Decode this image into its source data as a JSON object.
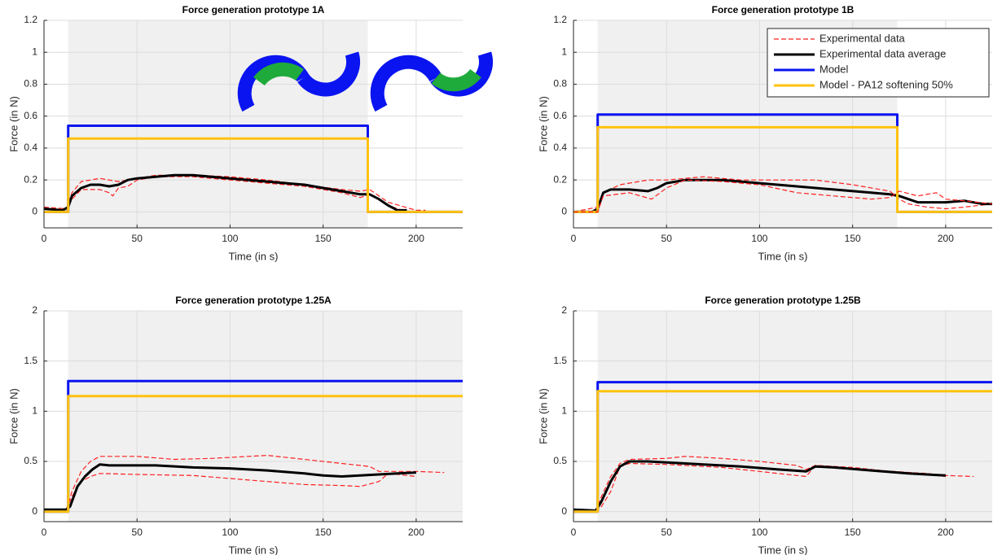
{
  "chart_data": [
    {
      "type": "line",
      "title": "Force generation prototype 1A",
      "xlabel": "Time (in s)",
      "ylabel": "Force (in N)",
      "xlim": [
        0,
        225
      ],
      "ylim": [
        -0.1,
        1.2
      ],
      "xticks": [
        0,
        50,
        100,
        150,
        200
      ],
      "yticks": [
        0,
        0.2,
        0.4,
        0.6,
        0.8,
        1,
        1.2
      ],
      "grid": true,
      "shade": [
        13,
        174
      ],
      "series": [
        {
          "color": "#ff2020",
          "style": "dashed",
          "x": [
            0,
            12,
            15,
            20,
            25,
            30,
            35,
            40,
            50,
            60,
            80,
            100,
            120,
            140,
            160,
            170,
            175,
            185,
            200,
            205
          ],
          "values": [
            0.03,
            0.02,
            0.12,
            0.19,
            0.2,
            0.21,
            0.2,
            0.19,
            0.21,
            0.23,
            0.23,
            0.22,
            0.2,
            0.17,
            0.14,
            0.13,
            0.14,
            0.06,
            0.01,
            0.01
          ]
        },
        {
          "color": "#ff2020",
          "style": "dashed",
          "x": [
            0,
            12,
            15,
            20,
            30,
            35,
            37,
            40,
            45,
            50,
            60,
            80,
            100,
            120,
            140,
            160,
            170,
            175,
            185,
            195
          ],
          "values": [
            0,
            0,
            0.08,
            0.14,
            0.14,
            0.12,
            0.1,
            0.15,
            0.16,
            0.2,
            0.22,
            0.22,
            0.2,
            0.18,
            0.16,
            0.12,
            0.09,
            0.11,
            0.04,
            0
          ]
        },
        {
          "color": "#000000",
          "style": "solid",
          "x": [
            0,
            10,
            13,
            15,
            20,
            25,
            30,
            35,
            40,
            45,
            50,
            60,
            70,
            80,
            90,
            100,
            110,
            120,
            130,
            140,
            150,
            160,
            170,
            175,
            180,
            185,
            190,
            195
          ],
          "values": [
            0.02,
            0.01,
            0.03,
            0.1,
            0.15,
            0.17,
            0.17,
            0.16,
            0.17,
            0.2,
            0.21,
            0.22,
            0.23,
            0.23,
            0.22,
            0.21,
            0.2,
            0.19,
            0.18,
            0.17,
            0.15,
            0.13,
            0.11,
            0.11,
            0.08,
            0.04,
            0.01,
            0.01
          ]
        },
        {
          "color": "#0a14f0",
          "style": "solid",
          "x": [
            0,
            13,
            13,
            174,
            174,
            225
          ],
          "values": [
            0,
            0,
            0.54,
            0.54,
            0,
            0
          ]
        },
        {
          "color": "#ffc20e",
          "style": "solid",
          "x": [
            0,
            13,
            13,
            174,
            174,
            225
          ],
          "values": [
            0,
            0,
            0.46,
            0.46,
            0,
            0
          ]
        }
      ]
    },
    {
      "type": "line",
      "title": "Force generation prototype 1B",
      "xlabel": "Time (in s)",
      "ylabel": "Force (in N)",
      "xlim": [
        0,
        225
      ],
      "ylim": [
        -0.1,
        1.2
      ],
      "xticks": [
        0,
        50,
        100,
        150,
        200
      ],
      "yticks": [
        0,
        0.2,
        0.4,
        0.6,
        0.8,
        1,
        1.2
      ],
      "grid": true,
      "shade": [
        13,
        174
      ],
      "legend": "upper right",
      "series": [
        {
          "name": "Experimental data",
          "color": "#ff2020",
          "style": "dashed",
          "x": [
            0,
            13,
            16,
            25,
            40,
            50,
            70,
            90,
            110,
            130,
            150,
            170,
            175,
            180,
            190,
            200,
            210,
            225
          ],
          "values": [
            0,
            0.03,
            0.12,
            0.17,
            0.2,
            0.2,
            0.22,
            0.2,
            0.2,
            0.2,
            0.17,
            0.13,
            0.08,
            0.05,
            0.03,
            0.02,
            0.03,
            0.05
          ]
        },
        {
          "name": "Experimental data average",
          "color": "#000000",
          "style": "solid",
          "x": [
            0,
            10,
            13,
            16,
            20,
            30,
            40,
            45,
            50,
            60,
            70,
            80,
            100,
            120,
            140,
            160,
            170,
            175,
            180,
            185,
            190,
            200,
            210,
            220,
            225
          ],
          "values": [
            0,
            0,
            0.02,
            0.12,
            0.14,
            0.14,
            0.13,
            0.15,
            0.18,
            0.2,
            0.2,
            0.2,
            0.18,
            0.16,
            0.14,
            0.12,
            0.11,
            0.1,
            0.08,
            0.06,
            0.06,
            0.06,
            0.07,
            0.05,
            0.05
          ]
        },
        {
          "name": "Model",
          "color": "#0a14f0",
          "style": "solid",
          "x": [
            0,
            13,
            13,
            174,
            174,
            225
          ],
          "values": [
            0,
            0,
            0.61,
            0.61,
            0,
            0
          ]
        },
        {
          "name": "Model - PA12 softening 50%",
          "color": "#ffc20e",
          "style": "solid",
          "x": [
            0,
            13,
            13,
            174,
            174,
            225
          ],
          "values": [
            0,
            0,
            0.53,
            0.53,
            0,
            0
          ]
        },
        {
          "color": "#ff2020",
          "style": "dashed",
          "x": [
            0,
            13,
            16,
            30,
            42,
            50,
            60,
            80,
            100,
            120,
            140,
            160,
            170,
            175,
            185,
            195,
            200,
            210,
            225
          ],
          "values": [
            0,
            0,
            0.1,
            0.12,
            0.08,
            0.15,
            0.2,
            0.19,
            0.17,
            0.12,
            0.1,
            0.08,
            0.09,
            0.13,
            0.1,
            0.12,
            0.08,
            0.07,
            0.05
          ]
        }
      ]
    },
    {
      "type": "line",
      "title": "Force generation prototype 1.25A",
      "xlabel": "Time (in s)",
      "ylabel": "Force (in N)",
      "xlim": [
        0,
        225
      ],
      "ylim": [
        -0.1,
        2
      ],
      "xticks": [
        0,
        50,
        100,
        150,
        200
      ],
      "yticks": [
        0,
        0.5,
        1,
        1.5,
        2
      ],
      "grid": true,
      "shade": [
        13,
        225
      ],
      "series": [
        {
          "color": "#ff2020",
          "style": "dashed",
          "x": [
            0,
            12,
            15,
            20,
            25,
            30,
            50,
            70,
            90,
            110,
            120,
            140,
            160,
            175,
            180,
            200,
            215
          ],
          "values": [
            0.02,
            0.02,
            0.2,
            0.4,
            0.5,
            0.55,
            0.55,
            0.52,
            0.53,
            0.55,
            0.56,
            0.52,
            0.48,
            0.45,
            0.4,
            0.4,
            0.39
          ]
        },
        {
          "color": "#ff2020",
          "style": "dashed",
          "x": [
            0,
            12,
            15,
            20,
            25,
            30,
            50,
            80,
            100,
            120,
            140,
            160,
            170,
            180,
            185,
            200
          ],
          "values": [
            0.02,
            0.02,
            0.15,
            0.3,
            0.35,
            0.38,
            0.37,
            0.36,
            0.33,
            0.3,
            0.27,
            0.26,
            0.25,
            0.3,
            0.38,
            0.35
          ]
        },
        {
          "color": "#000000",
          "style": "solid",
          "x": [
            0,
            12,
            14,
            18,
            22,
            26,
            30,
            35,
            40,
            60,
            80,
            100,
            120,
            140,
            150,
            160,
            170,
            180,
            190,
            200
          ],
          "values": [
            0.02,
            0.02,
            0.05,
            0.25,
            0.35,
            0.42,
            0.47,
            0.46,
            0.46,
            0.46,
            0.44,
            0.43,
            0.41,
            0.38,
            0.36,
            0.35,
            0.36,
            0.37,
            0.38,
            0.39
          ]
        },
        {
          "color": "#0a14f0",
          "style": "solid",
          "x": [
            0,
            13,
            13,
            225
          ],
          "values": [
            0,
            0,
            1.3,
            1.3
          ]
        },
        {
          "color": "#ffc20e",
          "style": "solid",
          "x": [
            0,
            13,
            13,
            225
          ],
          "values": [
            0,
            0,
            1.15,
            1.15
          ]
        }
      ]
    },
    {
      "type": "line",
      "title": "Force generation prototype 1.25B",
      "xlabel": "Time (in s)",
      "ylabel": "Force (in N)",
      "xlim": [
        0,
        225
      ],
      "ylim": [
        -0.1,
        2
      ],
      "xticks": [
        0,
        50,
        100,
        150,
        200
      ],
      "yticks": [
        0,
        0.5,
        1,
        1.5,
        2
      ],
      "grid": true,
      "shade": [
        13,
        225
      ],
      "series": [
        {
          "color": "#ff2020",
          "style": "dashed",
          "x": [
            0,
            12,
            15,
            20,
            25,
            30,
            50,
            60,
            80,
            100,
            120,
            125,
            130,
            150,
            170,
            190,
            200,
            215
          ],
          "values": [
            0.02,
            0,
            0.15,
            0.35,
            0.48,
            0.52,
            0.53,
            0.55,
            0.53,
            0.5,
            0.46,
            0.42,
            0.46,
            0.44,
            0.4,
            0.38,
            0.36,
            0.35
          ]
        },
        {
          "color": "#ff2020",
          "style": "dashed",
          "x": [
            0,
            12,
            15,
            20,
            25,
            30,
            50,
            80,
            100,
            120,
            125,
            130,
            150,
            180,
            200
          ],
          "values": [
            0.02,
            0,
            0.05,
            0.2,
            0.45,
            0.48,
            0.47,
            0.44,
            0.4,
            0.36,
            0.35,
            0.46,
            0.43,
            0.39,
            0.35
          ]
        },
        {
          "color": "#000000",
          "style": "solid",
          "x": [
            0,
            12,
            15,
            20,
            25,
            30,
            40,
            50,
            70,
            90,
            110,
            125,
            130,
            140,
            160,
            180,
            200
          ],
          "values": [
            0.02,
            0.01,
            0.1,
            0.3,
            0.45,
            0.5,
            0.5,
            0.49,
            0.47,
            0.45,
            0.42,
            0.4,
            0.45,
            0.44,
            0.41,
            0.38,
            0.36
          ]
        },
        {
          "color": "#0a14f0",
          "style": "solid",
          "x": [
            0,
            13,
            13,
            225
          ],
          "values": [
            0,
            0,
            1.29,
            1.29
          ]
        },
        {
          "color": "#ffc20e",
          "style": "solid",
          "x": [
            0,
            13,
            13,
            225
          ],
          "values": [
            0,
            0,
            1.2,
            1.2
          ]
        }
      ]
    }
  ]
}
